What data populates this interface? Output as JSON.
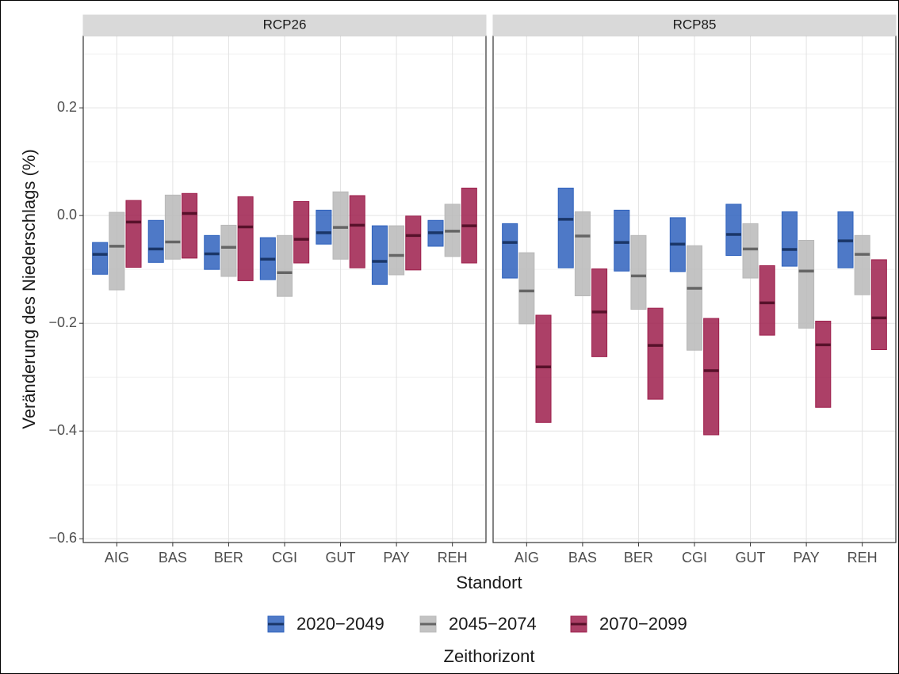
{
  "chart_data": {
    "type": "crossbar",
    "ylabel": "Veränderung des Niederschlags (%)",
    "xlabel": "Standort",
    "legend_title": "Zeithorizont",
    "categories": [
      "AIG",
      "BAS",
      "BER",
      "CGI",
      "GUT",
      "PAY",
      "REH"
    ],
    "ylim": [
      -0.607,
      0.334
    ],
    "yticks": [
      {
        "value": -0.6,
        "label": "−0.6"
      },
      {
        "value": -0.4,
        "label": "−0.4"
      },
      {
        "value": -0.2,
        "label": "−0.2"
      },
      {
        "value": 0,
        "label": "0.0"
      },
      0.2
    ],
    "yminor": [
      -0.5,
      -0.3,
      -0.1,
      0.1,
      0.3
    ],
    "grid": true,
    "series": [
      {
        "name": "2020−2049",
        "color": "#2f62bd"
      },
      {
        "name": "2045−2074",
        "color": "#b8b8b8"
      },
      {
        "name": "2070−2099",
        "color": "#9e1f4c"
      }
    ],
    "facets": [
      {
        "title": "RCP26",
        "series": [
          {
            "high": [
              -0.05,
              -0.009,
              -0.037,
              -0.041,
              0.01,
              -0.019,
              -0.009
            ],
            "values": [
              -0.072,
              -0.062,
              -0.071,
              -0.081,
              -0.032,
              -0.085,
              -0.032
            ],
            "low": [
              -0.109,
              -0.087,
              -0.1,
              -0.119,
              -0.053,
              -0.128,
              -0.057
            ]
          },
          {
            "high": [
              0.006,
              0.038,
              -0.018,
              -0.037,
              0.044,
              -0.019,
              0.021
            ],
            "values": [
              -0.057,
              -0.049,
              -0.059,
              -0.106,
              -0.022,
              -0.074,
              -0.029
            ],
            "low": [
              -0.138,
              -0.081,
              -0.113,
              -0.15,
              -0.081,
              -0.11,
              -0.076
            ]
          },
          {
            "high": [
              0.028,
              0.041,
              0.035,
              0.026,
              0.037,
              -0.001,
              0.051
            ],
            "values": [
              -0.012,
              0.004,
              -0.021,
              -0.044,
              -0.018,
              -0.037,
              -0.019
            ],
            "low": [
              -0.096,
              -0.079,
              -0.121,
              -0.088,
              -0.097,
              -0.101,
              -0.088
            ]
          }
        ]
      },
      {
        "title": "RCP85",
        "series": [
          {
            "high": [
              -0.015,
              0.051,
              0.01,
              -0.004,
              0.021,
              0.007,
              0.007
            ],
            "values": [
              -0.05,
              -0.007,
              -0.05,
              -0.053,
              -0.035,
              -0.063,
              -0.047
            ],
            "low": [
              -0.116,
              -0.097,
              -0.103,
              -0.104,
              -0.074,
              -0.094,
              -0.097
            ]
          },
          {
            "high": [
              -0.069,
              0.007,
              -0.037,
              -0.056,
              -0.015,
              -0.046,
              -0.037
            ],
            "values": [
              -0.14,
              -0.038,
              -0.112,
              -0.135,
              -0.062,
              -0.103,
              -0.072
            ],
            "low": [
              -0.201,
              -0.149,
              -0.174,
              -0.25,
              -0.116,
              -0.209,
              -0.147
            ]
          },
          {
            "high": [
              -0.185,
              -0.099,
              -0.172,
              -0.191,
              -0.093,
              -0.196,
              -0.082
            ],
            "values": [
              -0.281,
              -0.179,
              -0.241,
              -0.288,
              -0.162,
              -0.24,
              -0.19
            ],
            "low": [
              -0.384,
              -0.262,
              -0.341,
              -0.407,
              -0.222,
              -0.356,
              -0.249
            ]
          }
        ]
      }
    ]
  }
}
